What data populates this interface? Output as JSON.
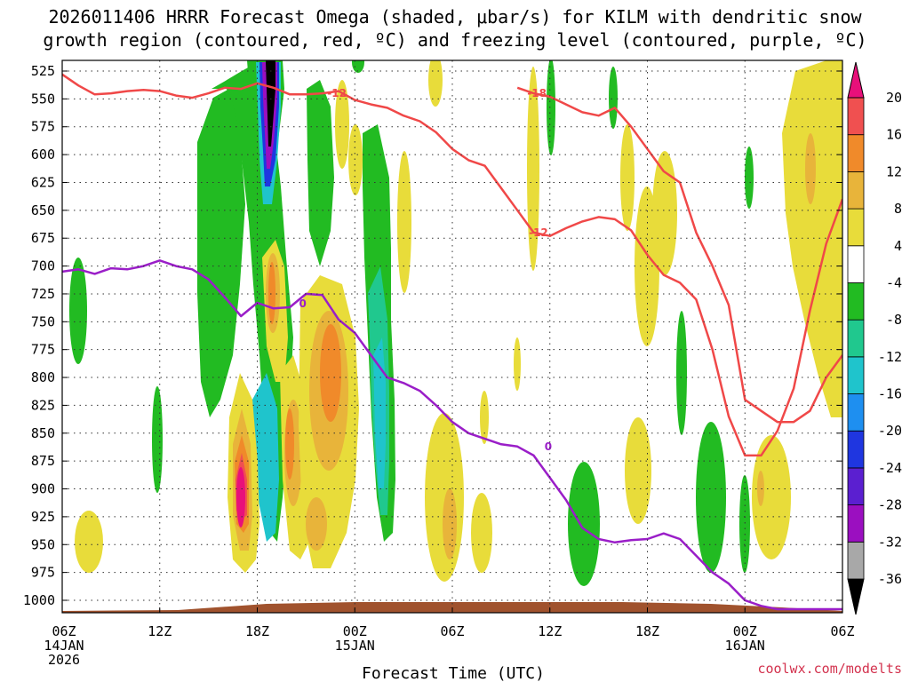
{
  "chart_data": {
    "type": "heatmap",
    "title_lines": [
      "2026011406 HRRR Forecast Omega (shaded, μbar/s) for KILM with dendritic snow",
      "growth region (contoured, red, ºC) and freezing level (contoured, purple, ºC)"
    ],
    "xlabel": "Forecast Time (UTC)",
    "ylabel": "",
    "credit": "coolwx.com/modelts",
    "x_hours_range": [
      0,
      48
    ],
    "y_range": [
      515,
      1030
    ],
    "x_ticks": [
      {
        "h": 0,
        "lines": [
          "06Z",
          "14JAN",
          "2026"
        ]
      },
      {
        "h": 6,
        "lines": [
          "12Z"
        ]
      },
      {
        "h": 12,
        "lines": [
          "18Z"
        ]
      },
      {
        "h": 18,
        "lines": [
          "00Z",
          "15JAN"
        ]
      },
      {
        "h": 24,
        "lines": [
          "06Z"
        ]
      },
      {
        "h": 30,
        "lines": [
          "12Z"
        ]
      },
      {
        "h": 36,
        "lines": [
          "18Z"
        ]
      },
      {
        "h": 42,
        "lines": [
          "00Z",
          "16JAN"
        ]
      },
      {
        "h": 48,
        "lines": [
          "06Z"
        ]
      }
    ],
    "y_ticks": [
      525,
      550,
      575,
      600,
      625,
      650,
      675,
      700,
      725,
      750,
      775,
      800,
      825,
      850,
      875,
      900,
      925,
      950,
      975,
      1000
    ],
    "colorbar": {
      "levels": [
        "-36",
        "-32",
        "-28",
        "-24",
        "-20",
        "-16",
        "-12",
        "-8",
        "-4",
        "4",
        "8",
        "12",
        "16",
        "20"
      ],
      "colors": [
        "#000000",
        "#a8a8a8",
        "#9b0fc0",
        "#5b1fd0",
        "#1f36e0",
        "#1e8ff0",
        "#1fc4cc",
        "#20c88e",
        "#22bb22",
        "#ffffff",
        "#e8dc3a",
        "#e8b43a",
        "#f08a2a",
        "#f05050",
        "#e8107a"
      ]
    },
    "series": [
      {
        "name": "Dendritic growth -12 C (upper)",
        "color": "#f04848",
        "label": "-12",
        "x": [
          0,
          1,
          2,
          3,
          4,
          5,
          6,
          7,
          8,
          9,
          10,
          11,
          12,
          13,
          14,
          15,
          16,
          17,
          18,
          19,
          20,
          21,
          22,
          23,
          24,
          25,
          26,
          27,
          28,
          29,
          30,
          31,
          32,
          33,
          34,
          35,
          36,
          37,
          38,
          39,
          40,
          41,
          42,
          43,
          44,
          45,
          46,
          47,
          48
        ],
        "y": [
          528,
          538,
          546,
          545,
          543,
          542,
          543,
          547,
          549,
          545,
          540,
          541,
          536,
          540,
          546,
          546,
          545,
          543,
          551,
          555,
          558,
          565,
          570,
          580,
          595,
          605,
          610,
          630,
          650,
          670,
          673,
          666,
          660,
          656,
          658,
          668,
          690,
          708,
          715,
          730,
          775,
          835,
          870,
          870,
          848,
          810,
          740,
          680,
          640
        ]
      },
      {
        "name": "Dendritic growth -18 C (lower boundary)",
        "color": "#f04848",
        "label": "-18",
        "x": [
          28,
          29,
          30,
          31,
          32,
          33,
          34,
          35,
          36,
          37,
          38,
          39,
          40,
          41,
          42,
          43,
          44,
          45,
          46,
          47,
          48
        ],
        "y": [
          540,
          545,
          548,
          555,
          562,
          565,
          558,
          575,
          595,
          615,
          625,
          670,
          700,
          735,
          820,
          830,
          840,
          840,
          830,
          800,
          780
        ]
      },
      {
        "name": "Freezing level 0 C",
        "color": "#9a1ec8",
        "label": "0",
        "x": [
          0,
          1,
          2,
          3,
          4,
          5,
          6,
          7,
          8,
          9,
          10,
          11,
          12,
          13,
          14,
          15,
          16,
          17,
          18,
          19,
          20,
          21,
          22,
          23,
          24,
          25,
          26,
          27,
          28,
          29,
          30,
          31,
          32,
          33,
          34,
          35,
          36,
          37,
          38,
          39,
          40,
          41,
          42,
          43,
          44,
          45,
          46,
          47,
          48
        ],
        "y": [
          705,
          703,
          707,
          702,
          703,
          700,
          695,
          700,
          703,
          712,
          728,
          745,
          733,
          738,
          737,
          725,
          726,
          748,
          760,
          780,
          800,
          805,
          812,
          825,
          840,
          850,
          855,
          860,
          862,
          870,
          890,
          910,
          935,
          945,
          948,
          946,
          945,
          940,
          945,
          960,
          975,
          985,
          1000,
          1005,
          1008,
          1008,
          1008,
          1008,
          1008
        ]
      }
    ],
    "shaded_regions": [
      {
        "name": "Strong ascent core",
        "hour": 12.5,
        "pressure_top": 515,
        "pressure_bottom": 580,
        "omega_min": -36
      },
      {
        "name": "Green ascent column",
        "hour": 10.5,
        "pressure_top": 545,
        "pressure_bottom": 900,
        "omega_min": -8
      },
      {
        "name": "Descent maximum",
        "hour": 10.2,
        "pressure_top": 830,
        "pressure_bottom": 910,
        "omega_max": 20
      },
      {
        "name": "Teal ascent column",
        "hour": 20,
        "pressure_top": 590,
        "pressure_bottom": 920,
        "omega_min": -12
      }
    ]
  }
}
